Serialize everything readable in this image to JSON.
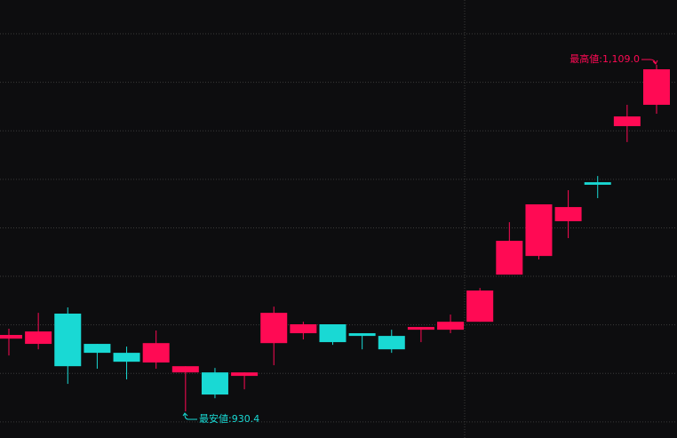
{
  "chart_data": {
    "type": "candlestick",
    "open": [
      967.9,
      965.2,
      980.8,
      965.2,
      960.6,
      955.6,
      950.5,
      950.5,
      948.7,
      965.6,
      970.7,
      975.3,
      970.7,
      969.3,
      972.5,
      972.5,
      976.6,
      1000.9,
      1010.5,
      1028.4,
      1048.5,
      1077.4,
      1088.4
    ],
    "high": [
      973.0,
      981.2,
      984.0,
      965.2,
      963.8,
      972.1,
      953.7,
      952.8,
      950.5,
      984.4,
      976.6,
      975.3,
      970.7,
      972.5,
      973.9,
      980.3,
      994.0,
      1027.9,
      1037.1,
      1044.4,
      1051.7,
      1088.4,
      1109.0
    ],
    "low": [
      959.2,
      962.4,
      944.6,
      952.4,
      946.9,
      952.4,
      930.4,
      937.2,
      941.8,
      954.2,
      967.5,
      964.7,
      962.4,
      960.6,
      966.1,
      970.7,
      976.6,
      1000.9,
      1008.7,
      1019.7,
      1040.3,
      1069.2,
      1083.8
    ],
    "close": [
      969.8,
      971.6,
      953.7,
      960.6,
      956.0,
      965.6,
      953.7,
      939.1,
      950.5,
      981.2,
      975.3,
      966.1,
      969.3,
      962.4,
      973.9,
      976.6,
      992.7,
      1018.3,
      1037.1,
      1035.7,
      1047.2,
      1082.4,
      1106.7
    ],
    "up_color": "#ff0a54",
    "down_color": "#19d9d4",
    "ylim": [
      916.7,
      1142.4
    ],
    "yticks": [
      925,
      950,
      975,
      1000,
      1025,
      1050,
      1075,
      1100,
      1125
    ],
    "grid": true,
    "annotations": [
      {
        "text": "最高値:1,109.0"
      },
      {
        "text": "最安値:930.4"
      }
    ]
  }
}
